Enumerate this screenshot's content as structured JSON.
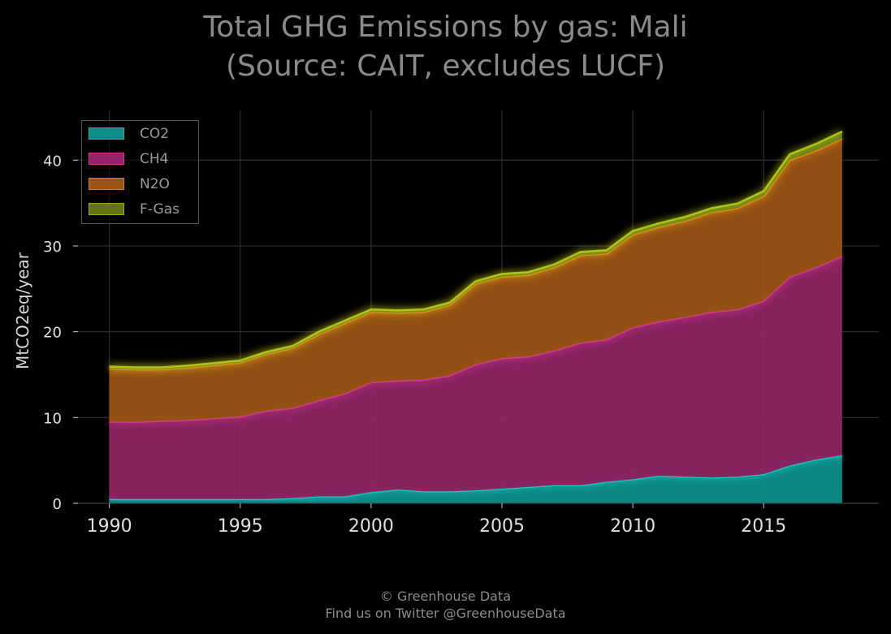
{
  "title_line1": "Total GHG Emissions by gas: Mali",
  "title_line2": "(Source: CAIT, excludes LUCF)",
  "footer_line1": "© Greenhouse Data",
  "footer_line2": "Find us on Twitter @GreenhouseData",
  "chart_data": {
    "type": "area",
    "stacked": true,
    "title": "Total GHG Emissions by gas: Mali\n(Source: CAIT, excludes LUCF)",
    "xlabel": "",
    "ylabel": "MtCO2eq/year",
    "xlim": [
      1988.8,
      2019.4
    ],
    "ylim": [
      0,
      45.8
    ],
    "xticks": [
      1990,
      1995,
      2000,
      2005,
      2010,
      2015
    ],
    "yticks": [
      0,
      10,
      20,
      30,
      40
    ],
    "grid": true,
    "legend_position": "top-left",
    "x": [
      1990,
      1991,
      1992,
      1993,
      1994,
      1995,
      1996,
      1997,
      1998,
      1999,
      2000,
      2001,
      2002,
      2003,
      2004,
      2005,
      2006,
      2007,
      2008,
      2009,
      2010,
      2011,
      2012,
      2013,
      2014,
      2015,
      2016,
      2017,
      2018
    ],
    "series": [
      {
        "name": "CO2",
        "color": "#13b5b1",
        "values": [
          0.5,
          0.5,
          0.5,
          0.5,
          0.5,
          0.5,
          0.5,
          0.6,
          0.8,
          0.8,
          1.3,
          1.6,
          1.4,
          1.4,
          1.5,
          1.7,
          1.9,
          2.1,
          2.1,
          2.5,
          2.8,
          3.2,
          3.1,
          3.0,
          3.1,
          3.4,
          4.4,
          5.1,
          5.6
        ]
      },
      {
        "name": "CH4",
        "color": "#d2378f",
        "values": [
          9.0,
          9.0,
          9.1,
          9.2,
          9.4,
          9.6,
          10.3,
          10.5,
          11.2,
          12.0,
          12.8,
          12.7,
          13.0,
          13.5,
          14.7,
          15.2,
          15.2,
          15.7,
          16.6,
          16.6,
          17.7,
          18.0,
          18.6,
          19.3,
          19.5,
          20.2,
          22.0,
          22.4,
          23.2
        ]
      },
      {
        "name": "N2O",
        "color": "#e07a16",
        "values": [
          6.2,
          6.1,
          6.0,
          6.1,
          6.2,
          6.3,
          6.6,
          7.0,
          7.7,
          8.2,
          8.2,
          7.9,
          7.9,
          8.2,
          9.4,
          9.5,
          9.5,
          9.7,
          10.2,
          10.0,
          10.8,
          11.0,
          11.2,
          11.6,
          11.8,
          12.2,
          13.6,
          13.6,
          13.7
        ]
      },
      {
        "name": "F-Gas",
        "color": "#8a9a12",
        "values": [
          0.25,
          0.25,
          0.25,
          0.25,
          0.25,
          0.25,
          0.25,
          0.25,
          0.3,
          0.3,
          0.3,
          0.3,
          0.3,
          0.3,
          0.3,
          0.35,
          0.35,
          0.35,
          0.4,
          0.4,
          0.45,
          0.45,
          0.5,
          0.5,
          0.55,
          0.6,
          0.7,
          0.8,
          0.85
        ]
      }
    ]
  }
}
